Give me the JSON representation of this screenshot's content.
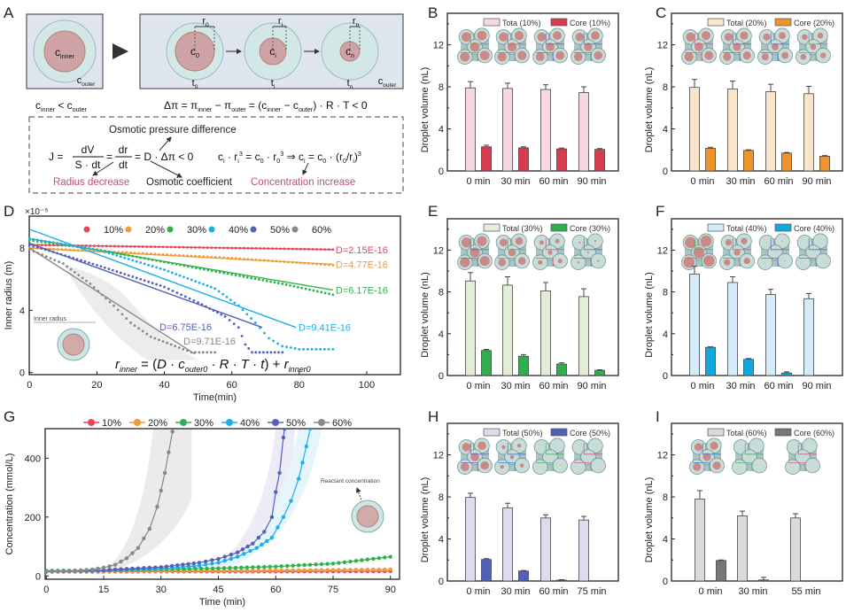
{
  "panel_labels": {
    "A": "A",
    "B": "B",
    "C": "C",
    "D": "D",
    "E": "E",
    "F": "F",
    "G": "G",
    "H": "H",
    "I": "I"
  },
  "panel_a": {
    "c_inner": [
      "c",
      "inner"
    ],
    "c_outer": [
      "c",
      "outer"
    ],
    "c0": [
      "c",
      "0"
    ],
    "ci": [
      "c",
      "i"
    ],
    "cn": [
      "c",
      "n"
    ],
    "r0": [
      "r",
      "0"
    ],
    "ri": [
      "r",
      "i"
    ],
    "rn": [
      "r",
      "n"
    ],
    "t0": [
      "t",
      "0"
    ],
    "ti": [
      "t",
      "i"
    ],
    "tn": [
      "t",
      "n"
    ],
    "inequality": [
      {
        "t": "c"
      },
      {
        "s": "inner"
      },
      {
        "t": " < c"
      },
      {
        "s": "outer"
      }
    ],
    "delta_pi": [
      {
        "t": "Δπ = π"
      },
      {
        "s": "inner"
      },
      {
        "t": " − π"
      },
      {
        "s": "outer"
      },
      {
        "t": " = (c"
      },
      {
        "s": "inner"
      },
      {
        "t": " − c"
      },
      {
        "s": "outer"
      },
      {
        "t": ") · R · T < 0"
      }
    ],
    "osmotic_pressure_label": "Osmotic pressure difference",
    "j_eq": {
      "lhs": "J =",
      "num1": "dV",
      "den1": "S · dt",
      "eq": "=",
      "num2": "dr",
      "den2": "dt",
      "rhs": "= D · Δπ < 0"
    },
    "conc_eq": [
      {
        "t": "c"
      },
      {
        "s": "i"
      },
      {
        "t": " · r"
      },
      {
        "s": "i"
      },
      {
        "p": "3"
      },
      {
        "t": " = c"
      },
      {
        "s": "0"
      },
      {
        "t": " · r"
      },
      {
        "s": "0"
      },
      {
        "p": "3"
      },
      {
        "t": "  ⇒  c"
      },
      {
        "s": "i"
      },
      {
        "t": " = c"
      },
      {
        "s": "0"
      },
      {
        "t": " · (r"
      },
      {
        "s": "0"
      },
      {
        "t": "/r"
      },
      {
        "s": "i"
      },
      {
        "t": ")"
      },
      {
        "p": "3"
      }
    ],
    "radius_decrease": "Radius decrease",
    "osmotic_coefficient": "Osmotic coefficient",
    "concentration_increase": "Concentration increase",
    "accent_red": "#c0506a"
  },
  "chart_data": [
    {
      "id": "D",
      "type": "scatter",
      "xlabel": "Time(min)",
      "ylabel": "Inner radius (m)",
      "y_multiplier": "×10⁻⁵",
      "xlim": [
        0,
        110
      ],
      "ylim": [
        0,
        10.2
      ],
      "xticks": [
        0,
        20,
        40,
        60,
        80,
        100
      ],
      "yticks": [
        0,
        4,
        8
      ],
      "legend_position": "top",
      "inset_label": "Inner radius",
      "formula": [
        {
          "i": "r"
        },
        {
          "is": "inner"
        },
        {
          "t": " = ("
        },
        {
          "i": "D · c"
        },
        {
          "is": "outer0"
        },
        {
          "i": " · R · T · t"
        },
        {
          "t": ") + "
        },
        {
          "i": "r"
        },
        {
          "is": "inner0"
        }
      ],
      "series": [
        {
          "name": "10%",
          "color": "#e8445a",
          "points": [
            [
              0,
              8.2
            ],
            [
              30,
              8.1
            ],
            [
              60,
              8.0
            ],
            [
              90,
              7.9
            ]
          ],
          "fit": [
            [
              0,
              8.2
            ],
            [
              90,
              7.9
            ]
          ],
          "fit_label": "D=2.15E-16"
        },
        {
          "name": "20%",
          "color": "#f29a38",
          "points": [
            [
              0,
              8.0
            ],
            [
              30,
              7.7
            ],
            [
              60,
              7.35
            ],
            [
              90,
              6.9
            ]
          ],
          "fit": [
            [
              0,
              8.0
            ],
            [
              90,
              6.95
            ]
          ],
          "fit_label": "D=4.77E-16"
        },
        {
          "name": "30%",
          "color": "#2fb24c",
          "points": [
            [
              0,
              8.5
            ],
            [
              20,
              7.9
            ],
            [
              40,
              7.1
            ],
            [
              60,
              6.3
            ],
            [
              75,
              5.7
            ],
            [
              90,
              5.0
            ]
          ],
          "fit": [
            [
              0,
              8.6
            ],
            [
              90,
              5.3
            ]
          ],
          "fit_label": "D=6.17E-16"
        },
        {
          "name": "40%",
          "color": "#19b0e8",
          "points": [
            [
              0,
              8.6
            ],
            [
              20,
              7.9
            ],
            [
              40,
              6.6
            ],
            [
              55,
              5.4
            ],
            [
              62,
              4.3
            ],
            [
              67,
              3.2
            ],
            [
              71,
              2.2
            ],
            [
              75,
              1.7
            ],
            [
              80,
              1.5
            ],
            [
              90,
              1.5
            ]
          ],
          "fit": [
            [
              0,
              9.2
            ],
            [
              79,
              2.9
            ]
          ],
          "fit_label": "D=9.41E-16"
        },
        {
          "name": "50%",
          "color": "#5560b8",
          "points": [
            [
              0,
              8.2
            ],
            [
              20,
              6.9
            ],
            [
              40,
              5.5
            ],
            [
              50,
              4.5
            ],
            [
              58,
              3.6
            ],
            [
              62,
              2.9
            ],
            [
              64,
              1.8
            ],
            [
              66,
              1.3
            ],
            [
              75,
              1.3
            ]
          ],
          "fit": [
            [
              0,
              8.3
            ],
            [
              69,
              2.9
            ]
          ],
          "fit_label": "D=6.75E-16"
        },
        {
          "name": "60%",
          "color": "#888888",
          "points": [
            [
              0,
              7.9
            ],
            [
              10,
              7.0
            ],
            [
              18,
              5.7
            ],
            [
              25,
              4.3
            ],
            [
              30,
              3.2
            ],
            [
              36,
              2.3
            ],
            [
              42,
              1.8
            ],
            [
              48,
              1.3
            ],
            [
              55,
              1.3
            ]
          ],
          "fit": [
            [
              0,
              8.0
            ],
            [
              49,
              1.2
            ]
          ],
          "fit_label": "D=9.71E-16"
        }
      ]
    },
    {
      "id": "G",
      "type": "line",
      "xlabel": "Time (min)",
      "ylabel": "Concentration (mmol/L)",
      "xlim": [
        -3,
        92
      ],
      "ylim": [
        -8,
        500
      ],
      "xticks": [
        0,
        15,
        30,
        45,
        60,
        75,
        90
      ],
      "yticks": [
        0,
        200,
        400
      ],
      "legend_position": "top",
      "inset_label": "Reactant concentration",
      "series": [
        {
          "name": "10%",
          "color": "#e8445a",
          "points": [
            [
              0,
              14
            ],
            [
              30,
              15
            ],
            [
              60,
              15
            ],
            [
              90,
              16
            ]
          ]
        },
        {
          "name": "20%",
          "color": "#f29a38",
          "points": [
            [
              0,
              15
            ],
            [
              30,
              17
            ],
            [
              60,
              19
            ],
            [
              90,
              22
            ]
          ]
        },
        {
          "name": "30%",
          "color": "#2fb24c",
          "points": [
            [
              0,
              18
            ],
            [
              15,
              19
            ],
            [
              30,
              22
            ],
            [
              45,
              26
            ],
            [
              60,
              32
            ],
            [
              75,
              42
            ],
            [
              90,
              65
            ]
          ]
        },
        {
          "name": "40%",
          "color": "#19b0e8",
          "points": [
            [
              0,
              15
            ],
            [
              15,
              18
            ],
            [
              30,
              25
            ],
            [
              40,
              35
            ],
            [
              45,
              45
            ],
            [
              50,
              65
            ],
            [
              55,
              95
            ],
            [
              59,
              130
            ],
            [
              62,
              200
            ],
            [
              64,
              255
            ],
            [
              66,
              330
            ],
            [
              67,
              385
            ],
            [
              68,
              440
            ],
            [
              69,
              500
            ]
          ]
        },
        {
          "name": "50%",
          "color": "#5560b8",
          "points": [
            [
              0,
              15
            ],
            [
              15,
              20
            ],
            [
              30,
              30
            ],
            [
              40,
              45
            ],
            [
              45,
              58
            ],
            [
              50,
              80
            ],
            [
              54,
              110
            ],
            [
              57,
              150
            ],
            [
              59,
              200
            ],
            [
              60,
              285
            ],
            [
              61,
              350
            ],
            [
              62,
              470
            ],
            [
              62.3,
              500
            ]
          ]
        },
        {
          "name": "60%",
          "color": "#888888",
          "points": [
            [
              0,
              15
            ],
            [
              6,
              17
            ],
            [
              12,
              22
            ],
            [
              15,
              28
            ],
            [
              18,
              38
            ],
            [
              21,
              60
            ],
            [
              24,
              95
            ],
            [
              27,
              160
            ],
            [
              29,
              235
            ],
            [
              30,
              290
            ],
            [
              31,
              350
            ],
            [
              32,
              420
            ],
            [
              33,
              490
            ]
          ]
        }
      ]
    },
    {
      "id": "B",
      "type": "bar",
      "ylabel": "Droplet volume (nL)",
      "ylim": [
        0,
        15
      ],
      "yticks": [
        0,
        4,
        8,
        12
      ],
      "legend_position": "top-right",
      "categories": [
        "0 min",
        "30 min",
        "60 min",
        "90 min"
      ],
      "series": [
        {
          "name": "Tota (10%)",
          "color": "#f7d7e3",
          "values": [
            7.9,
            7.85,
            7.75,
            7.45
          ],
          "errors": [
            0.6,
            0.5,
            0.45,
            0.55
          ]
        },
        {
          "name": "Core (10%)",
          "color": "#d83a4f",
          "values": [
            2.3,
            2.2,
            2.1,
            2.05
          ],
          "errors": [
            0.15,
            0.1,
            0.08,
            0.08
          ]
        }
      ]
    },
    {
      "id": "C",
      "type": "bar",
      "ylabel": "Droplet volume (nL)",
      "ylim": [
        0,
        15
      ],
      "yticks": [
        0,
        4,
        8,
        12
      ],
      "legend_position": "top-right",
      "categories": [
        "0 min",
        "30 min",
        "60 min",
        "90 min"
      ],
      "series": [
        {
          "name": "Total (20%)",
          "color": "#f9e4cc",
          "values": [
            7.95,
            7.8,
            7.55,
            7.35
          ],
          "errors": [
            0.75,
            0.75,
            0.7,
            0.7
          ]
        },
        {
          "name": "Core (20%)",
          "color": "#f0932b",
          "values": [
            2.15,
            1.95,
            1.7,
            1.4
          ],
          "errors": [
            0.1,
            0.06,
            0.06,
            0.06
          ]
        }
      ]
    },
    {
      "id": "E",
      "type": "bar",
      "ylabel": "Droplet volume (nL)",
      "ylim": [
        0,
        15
      ],
      "yticks": [
        0,
        4,
        8,
        12
      ],
      "legend_position": "top-right",
      "categories": [
        "0 min",
        "30 min",
        "60 min",
        "90 min"
      ],
      "series": [
        {
          "name": "Total (30%)",
          "color": "#e3eed8",
          "values": [
            9.05,
            8.65,
            8.1,
            7.55
          ],
          "errors": [
            0.8,
            0.8,
            0.8,
            0.75
          ]
        },
        {
          "name": "Core (30%)",
          "color": "#2fae4f",
          "values": [
            2.4,
            1.85,
            1.1,
            0.5
          ],
          "errors": [
            0.1,
            0.15,
            0.12,
            0.05
          ]
        }
      ]
    },
    {
      "id": "F",
      "type": "bar",
      "ylabel": "Droplet volume (nL)",
      "ylim": [
        0,
        15
      ],
      "yticks": [
        0,
        4,
        8,
        12
      ],
      "legend_position": "top-right",
      "categories": [
        "0 min",
        "30 min",
        "60 min",
        "90 min"
      ],
      "series": [
        {
          "name": "Total (40%)",
          "color": "#d3ecf8",
          "values": [
            9.7,
            8.9,
            7.75,
            7.35
          ],
          "errors": [
            0.75,
            0.55,
            0.5,
            0.5
          ]
        },
        {
          "name": "Core (40%)",
          "color": "#10a8e0",
          "values": [
            2.7,
            1.55,
            0.25,
            0
          ],
          "errors": [
            0.05,
            0.08,
            0.1,
            0
          ]
        }
      ]
    },
    {
      "id": "H",
      "type": "bar",
      "ylabel": "Droplet volume (nL)",
      "ylim": [
        0,
        15
      ],
      "yticks": [
        0,
        4,
        8,
        12
      ],
      "legend_position": "top-right",
      "categories": [
        "0 min",
        "30 min",
        "60 min",
        "75 min"
      ],
      "series": [
        {
          "name": "Total (50%)",
          "color": "#dcdcee",
          "values": [
            7.95,
            6.95,
            6.0,
            5.8
          ],
          "errors": [
            0.4,
            0.45,
            0.3,
            0.35
          ]
        },
        {
          "name": "Core (50%)",
          "color": "#5260b5",
          "values": [
            2.05,
            0.95,
            0.08,
            0
          ],
          "errors": [
            0.08,
            0.05,
            0.05,
            0
          ]
        }
      ]
    },
    {
      "id": "I",
      "type": "bar",
      "ylabel": "Droplet volume (nL)",
      "ylim": [
        0,
        15
      ],
      "yticks": [
        0,
        4,
        8,
        12
      ],
      "legend_position": "top-right",
      "categories": [
        "0 min",
        "30 min",
        "55 min"
      ],
      "series": [
        {
          "name": "Total (60%)",
          "color": "#dadada",
          "values": [
            7.8,
            6.2,
            6.0
          ],
          "errors": [
            0.8,
            0.45,
            0.4
          ]
        },
        {
          "name": "Core (60%)",
          "color": "#777777",
          "values": [
            1.95,
            0.1,
            0
          ],
          "errors": [
            0.05,
            0.25,
            0
          ]
        }
      ]
    }
  ]
}
